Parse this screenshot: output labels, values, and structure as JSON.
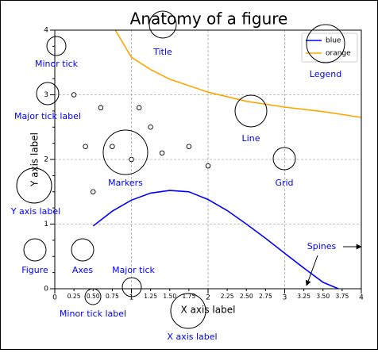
{
  "chart_data": {
    "type": "line",
    "title": "Anatomy of a figure",
    "xlabel": "X axis label",
    "ylabel": "Y axis label",
    "xlim": [
      0,
      4
    ],
    "ylim": [
      0,
      4
    ],
    "xticks": [
      0,
      1,
      2,
      3,
      4
    ],
    "yticks": [
      0,
      1,
      2,
      3,
      4
    ],
    "xminorticks": [
      {
        "value": 0.25,
        "label": "0.25"
      },
      {
        "value": 0.5,
        "label": "0.50"
      },
      {
        "value": 0.75,
        "label": "0.75"
      },
      {
        "value": 1.25,
        "label": "1.25"
      },
      {
        "value": 1.5,
        "label": "1.50"
      },
      {
        "value": 1.75,
        "label": "1.75"
      },
      {
        "value": 2.25,
        "label": "2.25"
      },
      {
        "value": 2.5,
        "label": "2.50"
      },
      {
        "value": 2.75,
        "label": "2.75"
      },
      {
        "value": 3.25,
        "label": "3.25"
      },
      {
        "value": 3.5,
        "label": "3.50"
      },
      {
        "value": 3.75,
        "label": "3.75"
      }
    ],
    "yminorticks": [
      0.25,
      0.5,
      0.75,
      1.25,
      1.5,
      1.75,
      2.25,
      2.5,
      2.75,
      3.25,
      3.5,
      3.75
    ],
    "grid": true,
    "legend": "upper right",
    "series": [
      {
        "name": "blue",
        "color": "#0000ff",
        "x": [
          0.5,
          0.75,
          1,
          1.25,
          1.5,
          1.75,
          2,
          2.25,
          2.5,
          2.75,
          3,
          3.25,
          3.5,
          3.7
        ],
        "values": [
          0.97,
          1.2,
          1.37,
          1.48,
          1.52,
          1.5,
          1.38,
          1.21,
          1.0,
          0.78,
          0.55,
          0.32,
          0.1,
          0
        ]
      },
      {
        "name": "orange",
        "color": "#ffa500",
        "x": [
          0.79,
          1,
          1.25,
          1.5,
          2,
          2.5,
          3,
          3.5,
          4
        ],
        "values": [
          4.0,
          3.58,
          3.39,
          3.24,
          3.04,
          2.9,
          2.81,
          2.74,
          2.65
        ]
      }
    ],
    "markers": {
      "x": [
        0.25,
        0.6,
        1.1,
        1.25,
        0.4,
        0.75,
        1.75,
        1.4,
        1.0,
        2.0,
        0.5
      ],
      "y": [
        3.0,
        2.8,
        2.8,
        2.5,
        2.2,
        2.2,
        2.2,
        2.1,
        2.0,
        1.9,
        1.5
      ]
    },
    "annotations": [
      "Title",
      "Legend",
      "Minor tick",
      "Major tick label",
      "Y axis label",
      "Line",
      "Markers",
      "Grid",
      "Spines",
      "Figure",
      "Axes",
      "Major tick",
      "Minor tick label",
      "X axis label"
    ]
  }
}
